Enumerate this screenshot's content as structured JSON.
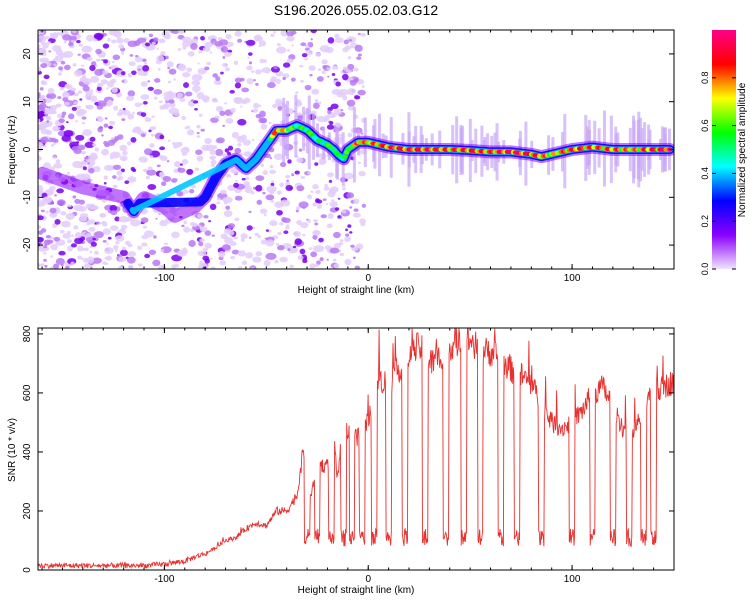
{
  "title": "S196.2026.055.02.03.G12",
  "chart_data": [
    {
      "type": "heatmap",
      "title": "S196.2026.055.02.03.G12",
      "xlabel": "Height of straight line (km)",
      "ylabel": "Frequency (Hz)",
      "xlim": [
        -162,
        150
      ],
      "ylim": [
        -25,
        25
      ],
      "xticks": [
        -100,
        0,
        100
      ],
      "yticks": [
        -20,
        -10,
        0,
        10,
        20
      ],
      "colorbar": {
        "label": "Normalized spectral amplitude",
        "range": [
          0,
          1
        ],
        "ticks": [
          0.0,
          0.2,
          0.4,
          0.6,
          0.8
        ],
        "tick_labels": [
          "0.0",
          "0.2",
          "0.4",
          "0.6",
          "0.8"
        ],
        "colors": [
          "#f2e3ff",
          "#8a00ff",
          "#0000ff",
          "#00ffff",
          "#00ff00",
          "#ffff00",
          "#ff0000",
          "#ff0088"
        ]
      },
      "ridge": {
        "x": [
          -160,
          -140,
          -120,
          -115,
          -110,
          -100,
          -95,
          -90,
          -85,
          -80,
          -75,
          -70,
          -65,
          -60,
          -55,
          -50,
          -45,
          -40,
          -35,
          -30,
          -25,
          -20,
          -17,
          -15,
          -12,
          -10,
          -5,
          0,
          10,
          20,
          30,
          40,
          50,
          60,
          70,
          80,
          85,
          90,
          100,
          110,
          120,
          130,
          140,
          148
        ],
        "freq": [
          -5,
          -8,
          -10,
          -13,
          -10,
          -12,
          -14,
          -13,
          -12,
          -10,
          -6,
          -3,
          -2,
          -4,
          -2,
          1,
          4,
          4,
          5,
          4,
          2,
          1,
          0,
          -1,
          -2,
          0,
          1.5,
          1.5,
          0.5,
          0,
          0,
          0,
          -0.2,
          -0.5,
          -0.5,
          -1,
          -1.5,
          -1,
          0,
          0.5,
          0,
          0,
          0,
          0
        ],
        "amplitude": [
          0.05,
          0.05,
          0.1,
          0.35,
          0.1,
          0.1,
          0.1,
          0.2,
          0.15,
          0.25,
          0.3,
          0.2,
          0.3,
          0.4,
          0.35,
          0.6,
          0.8,
          0.7,
          0.5,
          0.6,
          0.5,
          0.55,
          0.6,
          0.5,
          0.6,
          0.55,
          0.8,
          0.75,
          0.85,
          0.85,
          0.85,
          0.8,
          0.85,
          0.8,
          0.9,
          0.85,
          0.8,
          0.7,
          0.85,
          0.8,
          0.8,
          0.75,
          0.85,
          0.9
        ]
      }
    },
    {
      "type": "line",
      "xlabel": "Height of straight line (km)",
      "ylabel": "SNR (10 * v/v)",
      "xlim": [
        -162,
        150
      ],
      "ylim": [
        0,
        820
      ],
      "xticks": [
        -100,
        0,
        100
      ],
      "yticks": [
        0,
        200,
        400,
        600,
        800
      ],
      "series": [
        {
          "name": "SNR",
          "color": "#e8312f",
          "x": [
            -162,
            -150,
            -140,
            -130,
            -120,
            -110,
            -100,
            -90,
            -85,
            -80,
            -75,
            -70,
            -65,
            -60,
            -55,
            -50,
            -45,
            -40,
            -35,
            -32,
            -30,
            -28,
            -25,
            -20,
            -17,
            -15,
            -12,
            -10,
            -5,
            0,
            5,
            10,
            15,
            20,
            25,
            30,
            35,
            40,
            45,
            50,
            55,
            60,
            65,
            70,
            75,
            80,
            85,
            90,
            95,
            100,
            105,
            110,
            115,
            120,
            125,
            130,
            135,
            140,
            145,
            150
          ],
          "values": [
            15,
            15,
            15,
            15,
            15,
            15,
            20,
            30,
            45,
            55,
            75,
            100,
            110,
            140,
            160,
            150,
            200,
            200,
            250,
            400,
            320,
            250,
            360,
            350,
            450,
            300,
            500,
            470,
            450,
            500,
            650,
            630,
            680,
            720,
            760,
            700,
            720,
            760,
            780,
            780,
            740,
            740,
            720,
            680,
            660,
            630,
            560,
            500,
            480,
            500,
            540,
            600,
            620,
            560,
            480,
            460,
            540,
            600,
            620,
            640
          ]
        }
      ],
      "dips": [
        -30,
        -25,
        -18,
        -12,
        -8,
        -3,
        3,
        10,
        18,
        28,
        38,
        47,
        55,
        65,
        73,
        85,
        100,
        110,
        120,
        128,
        135,
        140
      ]
    }
  ]
}
